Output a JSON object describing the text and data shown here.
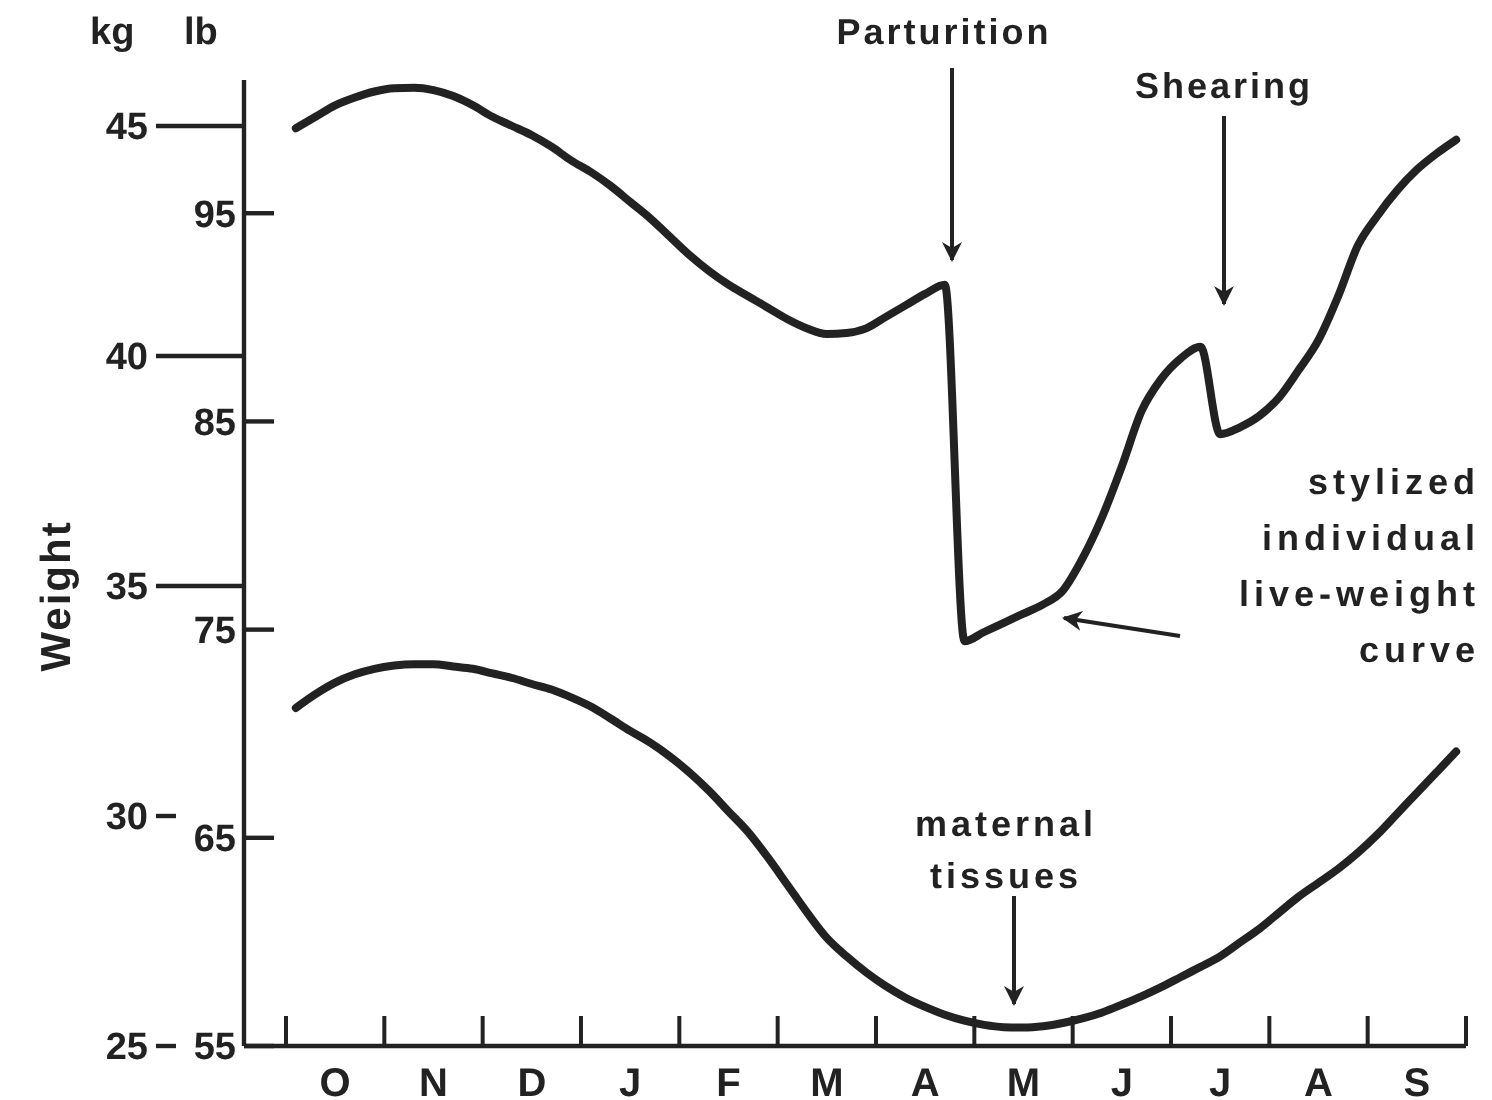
{
  "chart_data": {
    "type": "line",
    "ylabel": "Weight",
    "grid": false,
    "marker": "none",
    "line_style": "solid",
    "categories": [
      null,
      null,
      "O",
      null,
      null,
      null,
      null,
      "N",
      null,
      null,
      null,
      null,
      "D",
      null,
      null,
      null,
      null,
      "J",
      null,
      null,
      null,
      null,
      "F",
      null,
      null,
      null,
      null,
      "M",
      null,
      null,
      null,
      null,
      "A",
      null,
      null,
      null,
      null,
      "M",
      null,
      null,
      null,
      null,
      "J",
      null,
      null,
      null,
      null,
      "J",
      null,
      null,
      null,
      null,
      "A",
      null,
      null,
      null,
      null,
      "S",
      null,
      null
    ],
    "ylim": [
      25,
      46
    ],
    "yticks": [
      25,
      30,
      35,
      40,
      45
    ],
    "y2lim": [
      55,
      101.4
    ],
    "y2ticks": [
      55,
      65,
      75,
      85,
      95
    ],
    "series": [
      {
        "color": "#222222",
        "values": [
          44.95,
          45.2,
          45.45,
          45.62,
          45.75,
          45.82,
          45.83,
          45.78,
          45.65,
          45.45,
          45.2,
          45.0,
          44.8,
          44.55,
          44.25,
          44.0,
          43.7,
          43.35,
          43.0,
          42.6,
          42.2,
          41.85,
          41.55,
          41.3,
          41.05,
          40.8,
          40.6,
          40.48,
          40.5,
          40.6,
          40.85,
          41.1,
          41.35,
          41.55,
          33.8,
          34.0,
          34.2,
          34.4,
          34.6,
          34.9,
          35.6,
          36.5,
          37.6,
          38.8,
          39.5,
          39.95,
          40.2,
          38.3,
          38.45,
          38.7,
          39.1,
          39.7,
          40.35,
          41.3,
          42.4,
          43.05,
          43.6,
          44.05,
          44.4,
          44.7
        ]
      },
      {
        "color": "#222222",
        "values": [
          32.35,
          32.65,
          32.9,
          33.08,
          33.2,
          33.27,
          33.3,
          33.3,
          33.25,
          33.2,
          33.1,
          33.0,
          32.87,
          32.75,
          32.58,
          32.38,
          32.12,
          31.85,
          31.6,
          31.3,
          30.95,
          30.55,
          30.1,
          29.65,
          29.1,
          28.5,
          27.9,
          27.35,
          26.95,
          26.6,
          26.3,
          26.05,
          25.85,
          25.68,
          25.55,
          25.46,
          25.41,
          25.4,
          25.43,
          25.5,
          25.6,
          25.73,
          25.9,
          26.08,
          26.28,
          26.5,
          26.72,
          26.95,
          27.25,
          27.55,
          27.9,
          28.25,
          28.55,
          28.85,
          29.2,
          29.6,
          30.05,
          30.5,
          30.95,
          31.4
        ]
      }
    ],
    "annotations": [
      "kg",
      "lb",
      "Parturition",
      "Shearing",
      "stylized individual live-weight curve",
      "maternal tissues"
    ]
  }
}
